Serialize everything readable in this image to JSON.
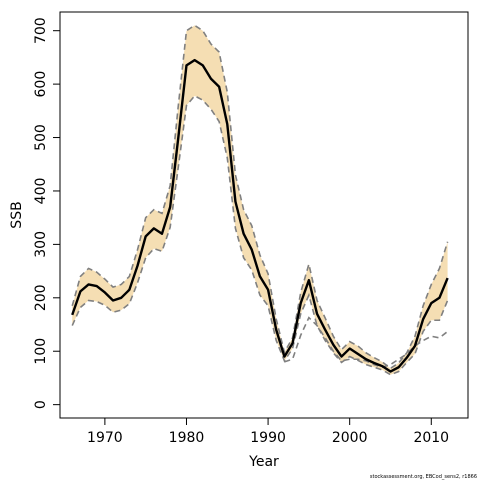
{
  "chart_data": {
    "type": "line",
    "xlabel": "Year",
    "ylabel": "SSB",
    "xlim": [
      1964.5,
      2014.5
    ],
    "ylim": [
      -25,
      735
    ],
    "x_ticks": [
      1970,
      1980,
      1990,
      2000,
      2010
    ],
    "y_ticks": [
      0,
      100,
      200,
      300,
      400,
      500,
      600,
      700
    ],
    "grid": false,
    "legend": "none",
    "colors": {
      "band": "#f5deb3",
      "estimate": "#000000",
      "band_edge": "#808080",
      "comparison": "#808080"
    },
    "footnote": "stockassessment.org, EBCod_sens2, r1866",
    "x": [
      1966,
      1967,
      1968,
      1969,
      1970,
      1971,
      1972,
      1973,
      1974,
      1975,
      1976,
      1977,
      1978,
      1979,
      1980,
      1981,
      1982,
      1983,
      1984,
      1985,
      1986,
      1987,
      1988,
      1989,
      1990,
      1991,
      1992,
      1993,
      1994,
      1995,
      1996,
      1997,
      1998,
      1999,
      2000,
      2001,
      2002,
      2003,
      2004,
      2005,
      2006,
      2007,
      2008,
      2009,
      2010,
      2011,
      2012
    ],
    "series": [
      {
        "role": "estimate",
        "style": "solid",
        "values": [
          168,
          212,
          225,
          222,
          210,
          195,
          200,
          215,
          260,
          315,
          330,
          320,
          370,
          500,
          635,
          645,
          635,
          610,
          595,
          525,
          380,
          320,
          290,
          240,
          215,
          140,
          90,
          115,
          190,
          233,
          170,
          140,
          112,
          90,
          105,
          95,
          85,
          78,
          72,
          62,
          70,
          88,
          110,
          160,
          190,
          200,
          237
        ]
      },
      {
        "role": "band-upper",
        "style": "dashed",
        "values": [
          185,
          240,
          255,
          248,
          235,
          220,
          225,
          240,
          290,
          350,
          365,
          358,
          410,
          560,
          700,
          710,
          700,
          675,
          660,
          585,
          430,
          365,
          335,
          280,
          245,
          160,
          98,
          125,
          210,
          263,
          195,
          162,
          128,
          103,
          118,
          110,
          97,
          88,
          80,
          68,
          78,
          97,
          128,
          185,
          225,
          255,
          305
        ]
      },
      {
        "role": "band-lower",
        "style": "dashed",
        "values": [
          148,
          182,
          195,
          193,
          186,
          173,
          177,
          189,
          228,
          275,
          292,
          287,
          332,
          445,
          560,
          578,
          570,
          553,
          530,
          462,
          330,
          275,
          252,
          205,
          185,
          120,
          82,
          105,
          170,
          205,
          148,
          120,
          97,
          79,
          90,
          83,
          75,
          70,
          65,
          56,
          62,
          79,
          95,
          137,
          158,
          158,
          195
        ]
      },
      {
        "role": "comparison",
        "style": "dashed",
        "values": [
          null,
          null,
          null,
          null,
          null,
          null,
          null,
          null,
          null,
          null,
          null,
          null,
          null,
          null,
          null,
          null,
          null,
          null,
          null,
          null,
          null,
          null,
          null,
          null,
          null,
          null,
          80,
          85,
          130,
          163,
          148,
          125,
          100,
          82,
          85,
          85,
          82,
          75,
          70,
          75,
          85,
          95,
          110,
          120,
          128,
          125,
          137
        ]
      }
    ]
  }
}
